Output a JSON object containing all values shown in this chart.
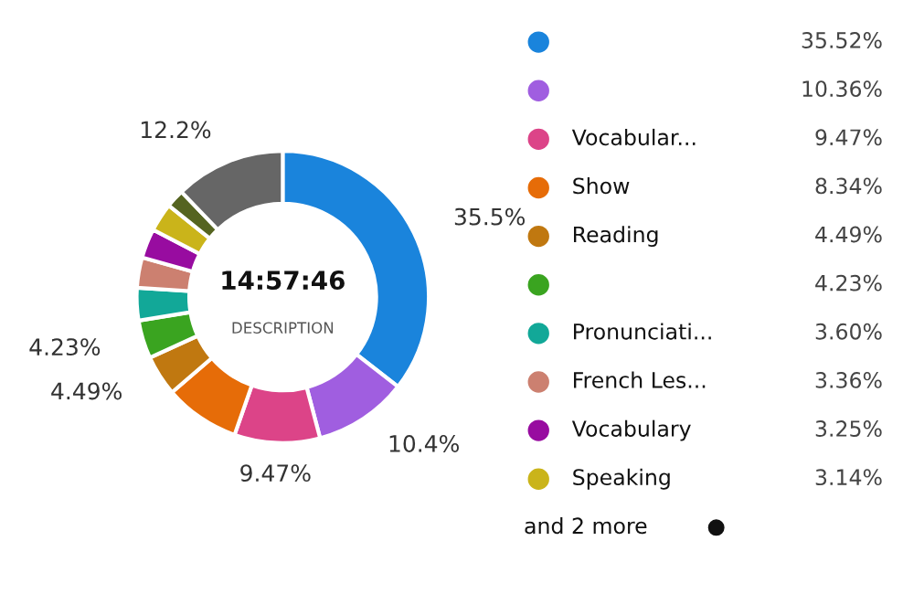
{
  "chart_data": {
    "type": "donut",
    "categories": [
      null,
      null,
      "Vocabular...",
      "Show",
      "Reading",
      null,
      "Pronunciati...",
      "French Les...",
      "Vocabulary",
      "Speaking",
      null,
      null
    ],
    "values": [
      35.52,
      10.36,
      9.47,
      8.34,
      4.49,
      4.23,
      3.6,
      3.36,
      3.25,
      3.14,
      2.04,
      12.2
    ],
    "colors": [
      "#1a84dc",
      "#a05ee0",
      "#dc4488",
      "#e66c08",
      "#c07810",
      "#3aa420",
      "#12a898",
      "#cc8070",
      "#980ca0",
      "#cab41a",
      "#556420",
      "#666666"
    ],
    "value_labels": [
      "35.5%",
      "10.4%",
      "9.47%",
      null,
      "4.49%",
      "4.23%",
      null,
      null,
      null,
      null,
      null,
      "12.2%"
    ],
    "annotations": [
      "14:57:46",
      "DESCRIPTION",
      "35.52%",
      "10.36%",
      "9.47%",
      "8.34%",
      "4.49%",
      "4.23%",
      "3.60%",
      "3.36%",
      "3.25%",
      "3.14%",
      "and 2 more"
    ],
    "legend": "right"
  }
}
